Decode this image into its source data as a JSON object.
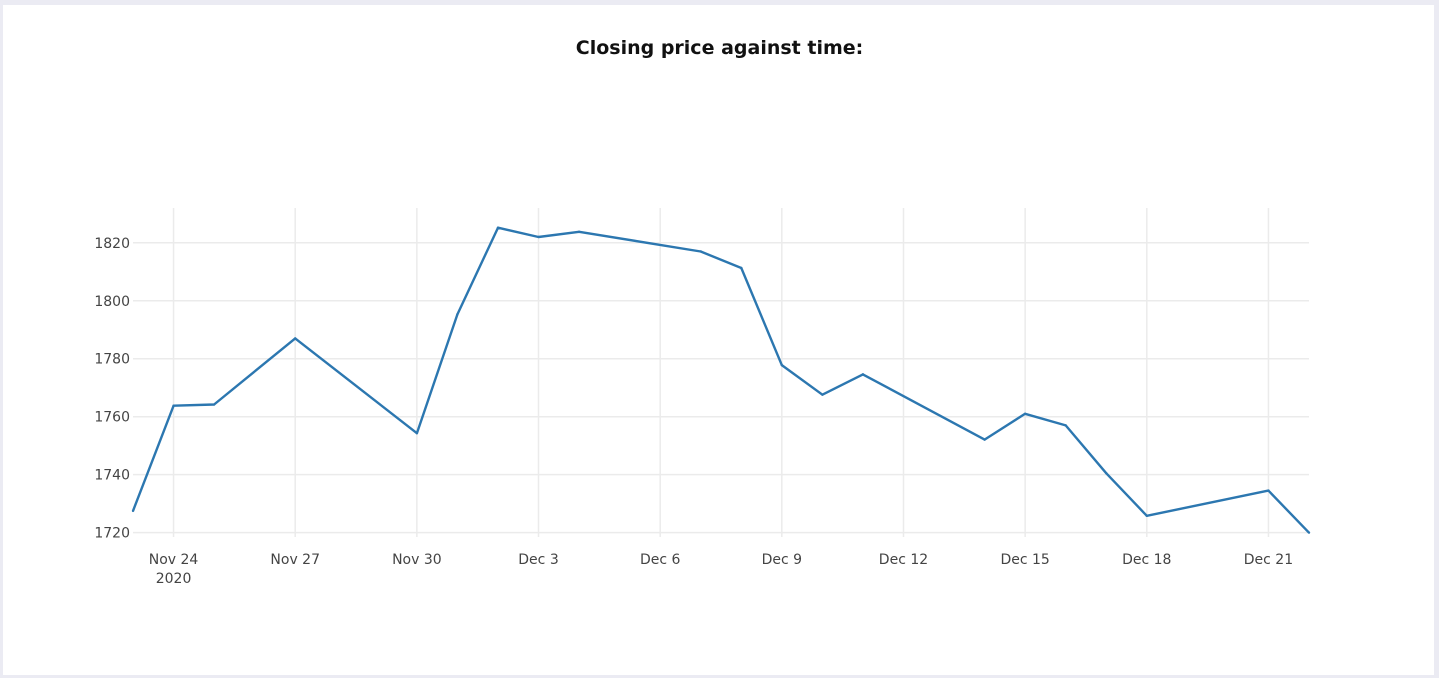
{
  "chart_data": {
    "type": "line",
    "title": "Closing price against time:",
    "xlabel": "",
    "ylabel": "",
    "x": [
      "2020-11-23",
      "2020-11-24",
      "2020-11-25",
      "2020-11-27",
      "2020-11-30",
      "2020-12-01",
      "2020-12-02",
      "2020-12-03",
      "2020-12-04",
      "2020-12-07",
      "2020-12-08",
      "2020-12-09",
      "2020-12-10",
      "2020-12-11",
      "2020-12-14",
      "2020-12-15",
      "2020-12-16",
      "2020-12-17",
      "2020-12-18",
      "2020-12-21",
      "2020-12-22"
    ],
    "series": [
      {
        "values": [
          1727.5,
          1763.8,
          1764.2,
          1787.0,
          1754.3,
          1795.3,
          1825.2,
          1822.0,
          1823.8,
          1817.0,
          1811.3,
          1777.8,
          1767.6,
          1774.6,
          1752.1,
          1761.0,
          1757.0,
          1740.5,
          1725.8,
          1734.5,
          1720.0
        ],
        "color": "#2c77b0"
      }
    ],
    "xlim": [
      "2020-11-23",
      "2020-12-22"
    ],
    "ylim": [
      1718.5,
      1832
    ],
    "x_ticks": [
      {
        "date": "2020-11-24",
        "label": "Nov 24",
        "sublabel": "2020"
      },
      {
        "date": "2020-11-27",
        "label": "Nov 27",
        "sublabel": ""
      },
      {
        "date": "2020-11-30",
        "label": "Nov 30",
        "sublabel": ""
      },
      {
        "date": "2020-12-03",
        "label": "Dec 3",
        "sublabel": ""
      },
      {
        "date": "2020-12-06",
        "label": "Dec 6",
        "sublabel": ""
      },
      {
        "date": "2020-12-09",
        "label": "Dec 9",
        "sublabel": ""
      },
      {
        "date": "2020-12-12",
        "label": "Dec 12",
        "sublabel": ""
      },
      {
        "date": "2020-12-15",
        "label": "Dec 15",
        "sublabel": ""
      },
      {
        "date": "2020-12-18",
        "label": "Dec 18",
        "sublabel": ""
      },
      {
        "date": "2020-12-21",
        "label": "Dec 21",
        "sublabel": ""
      }
    ],
    "y_ticks": [
      1720,
      1740,
      1760,
      1780,
      1800,
      1820
    ],
    "grid": true,
    "legend": "none"
  }
}
